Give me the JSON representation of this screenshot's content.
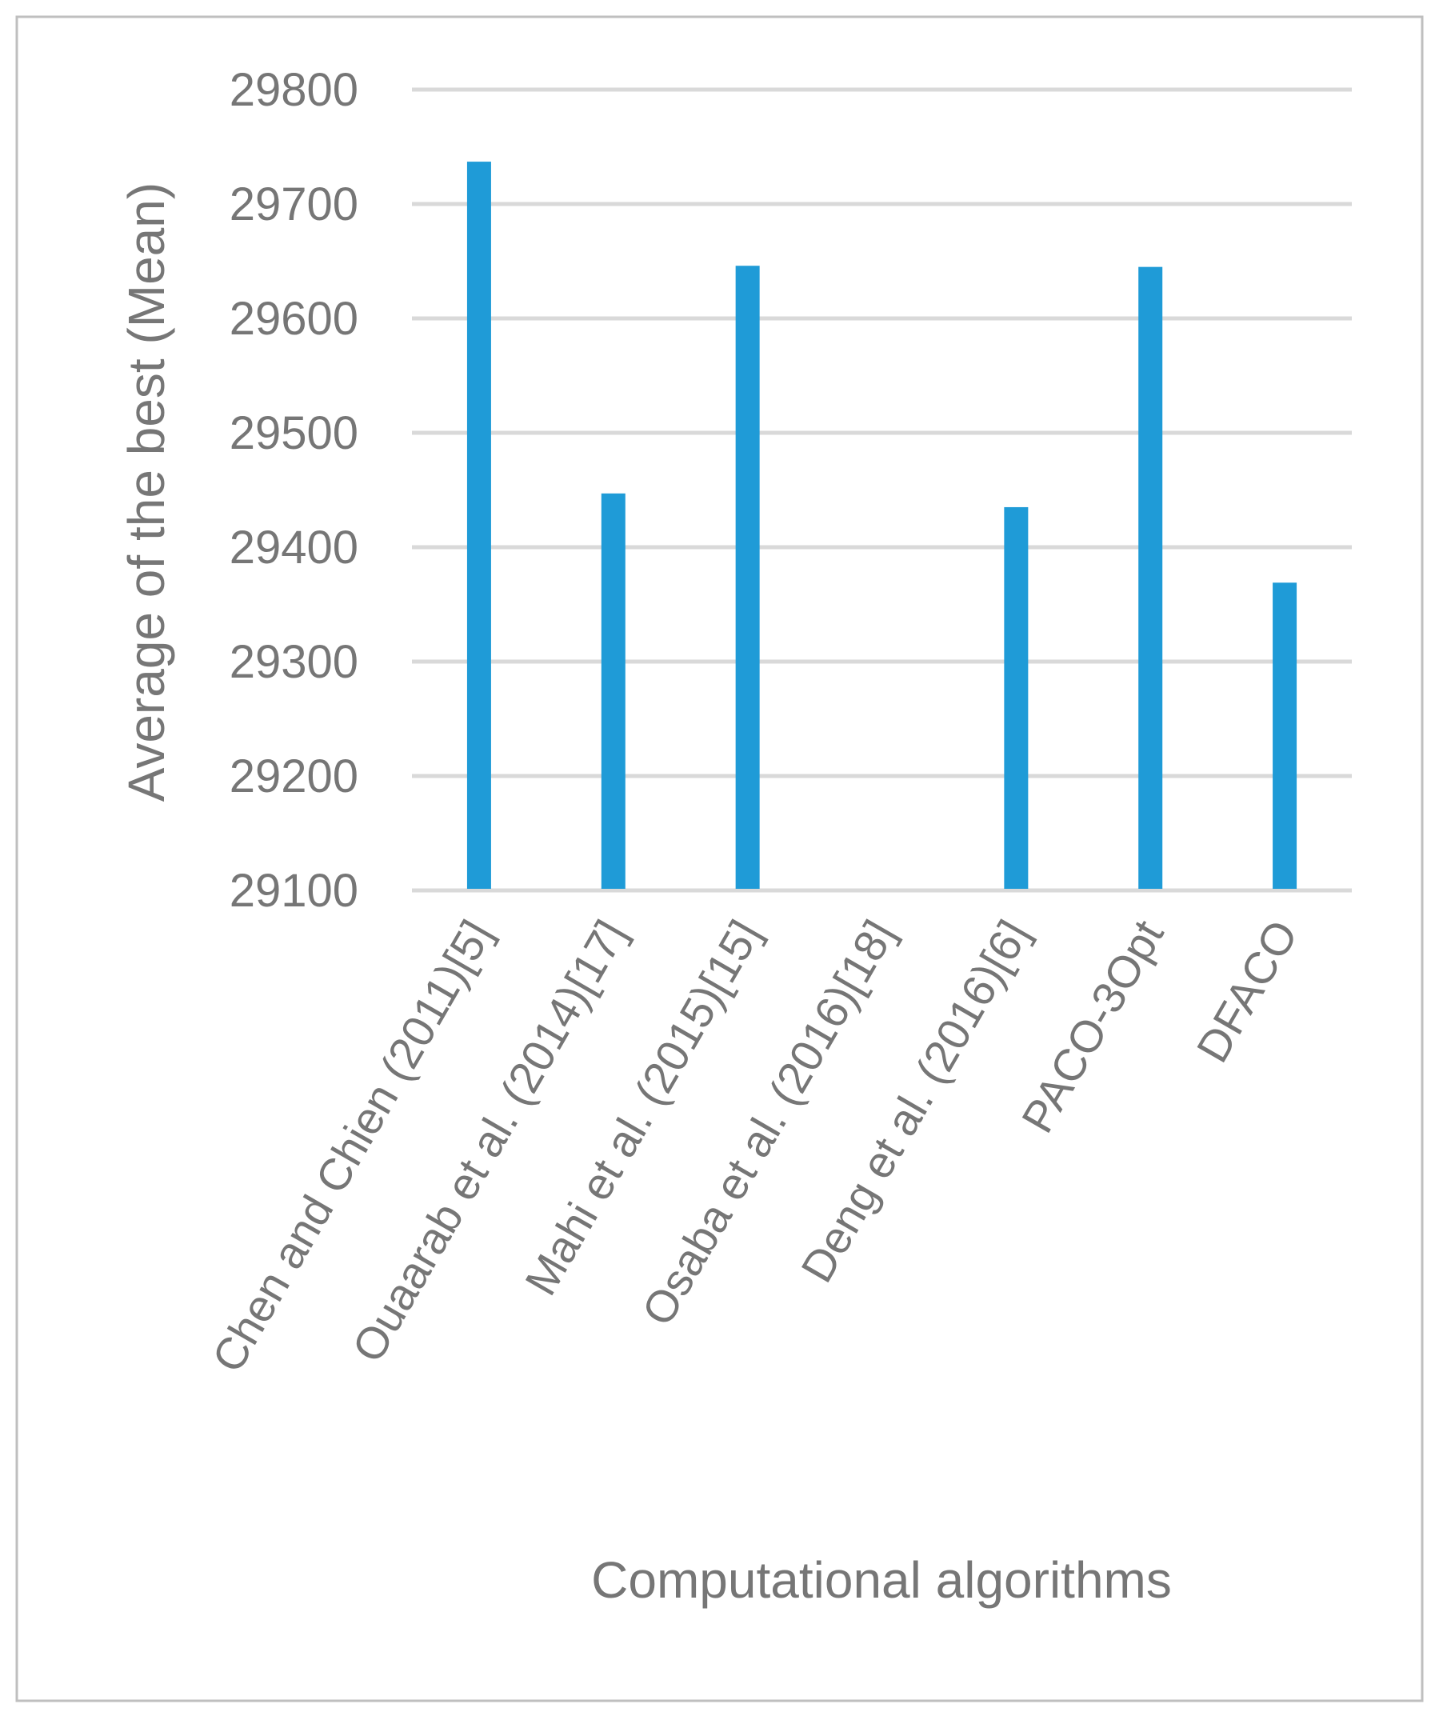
{
  "chart_data": {
    "type": "bar",
    "title": "",
    "xlabel": "Computational algorithms",
    "ylabel": "Average of the best  (Mean)",
    "ylim": [
      29100,
      29800
    ],
    "yticks": [
      29100,
      29200,
      29300,
      29400,
      29500,
      29600,
      29700,
      29800
    ],
    "categories": [
      "Chen and Chien (2011)[5]",
      "Ouaarab et al. (2014)[17]",
      "Mahi et al. (2015)[15]",
      "Osaba et al. (2016)[18]",
      "Deng et al. (2016)[6]",
      "PACO-3Opt",
      "DFACO"
    ],
    "values": [
      29737,
      29447,
      29646,
      null,
      29435,
      29645,
      29369
    ],
    "bar_color": "#1f9bd7",
    "grid": true,
    "legend": "none"
  }
}
